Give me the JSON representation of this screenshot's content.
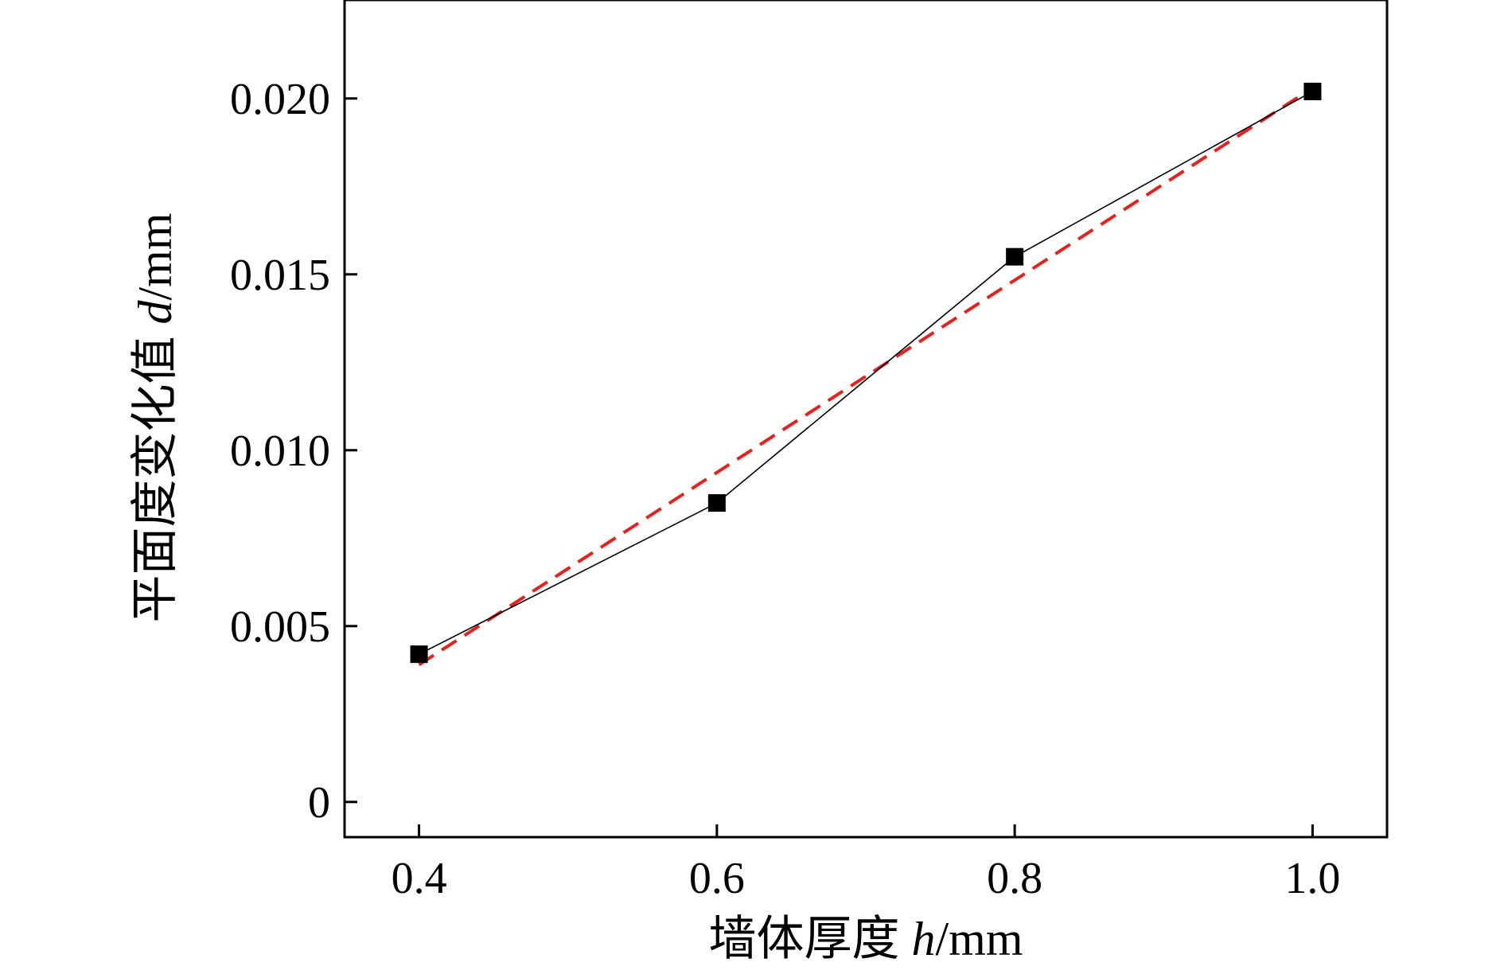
{
  "chart_data": {
    "type": "line",
    "xlabel_prefix": "墙体厚度 ",
    "xlabel_var": "h",
    "xlabel_unit": "/mm",
    "ylabel_prefix": "平面度变化值 ",
    "ylabel_var": "d",
    "ylabel_unit": "/mm",
    "x_ticks": [
      0.4,
      0.6,
      0.8,
      1.0
    ],
    "x_tick_labels": [
      "0.4",
      "0.6",
      "0.8",
      "1.0"
    ],
    "y_ticks": [
      0,
      0.005,
      0.01,
      0.015,
      0.02
    ],
    "y_tick_labels": [
      "0",
      "0.005",
      "0.010",
      "0.015",
      "0.020"
    ],
    "xlim": [
      0.35,
      1.05
    ],
    "ylim": [
      -0.001,
      0.0228
    ],
    "grid": false,
    "series": [
      {
        "style": "solid-line-square-markers",
        "color": "#000000",
        "x": [
          0.4,
          0.6,
          0.8,
          1.0
        ],
        "y": [
          0.0042,
          0.0085,
          0.0155,
          0.0202
        ]
      },
      {
        "style": "dashed-fit-line",
        "color": "#e8201c",
        "x": [
          0.4,
          1.0
        ],
        "y": [
          0.0039,
          0.0203
        ]
      }
    ]
  }
}
